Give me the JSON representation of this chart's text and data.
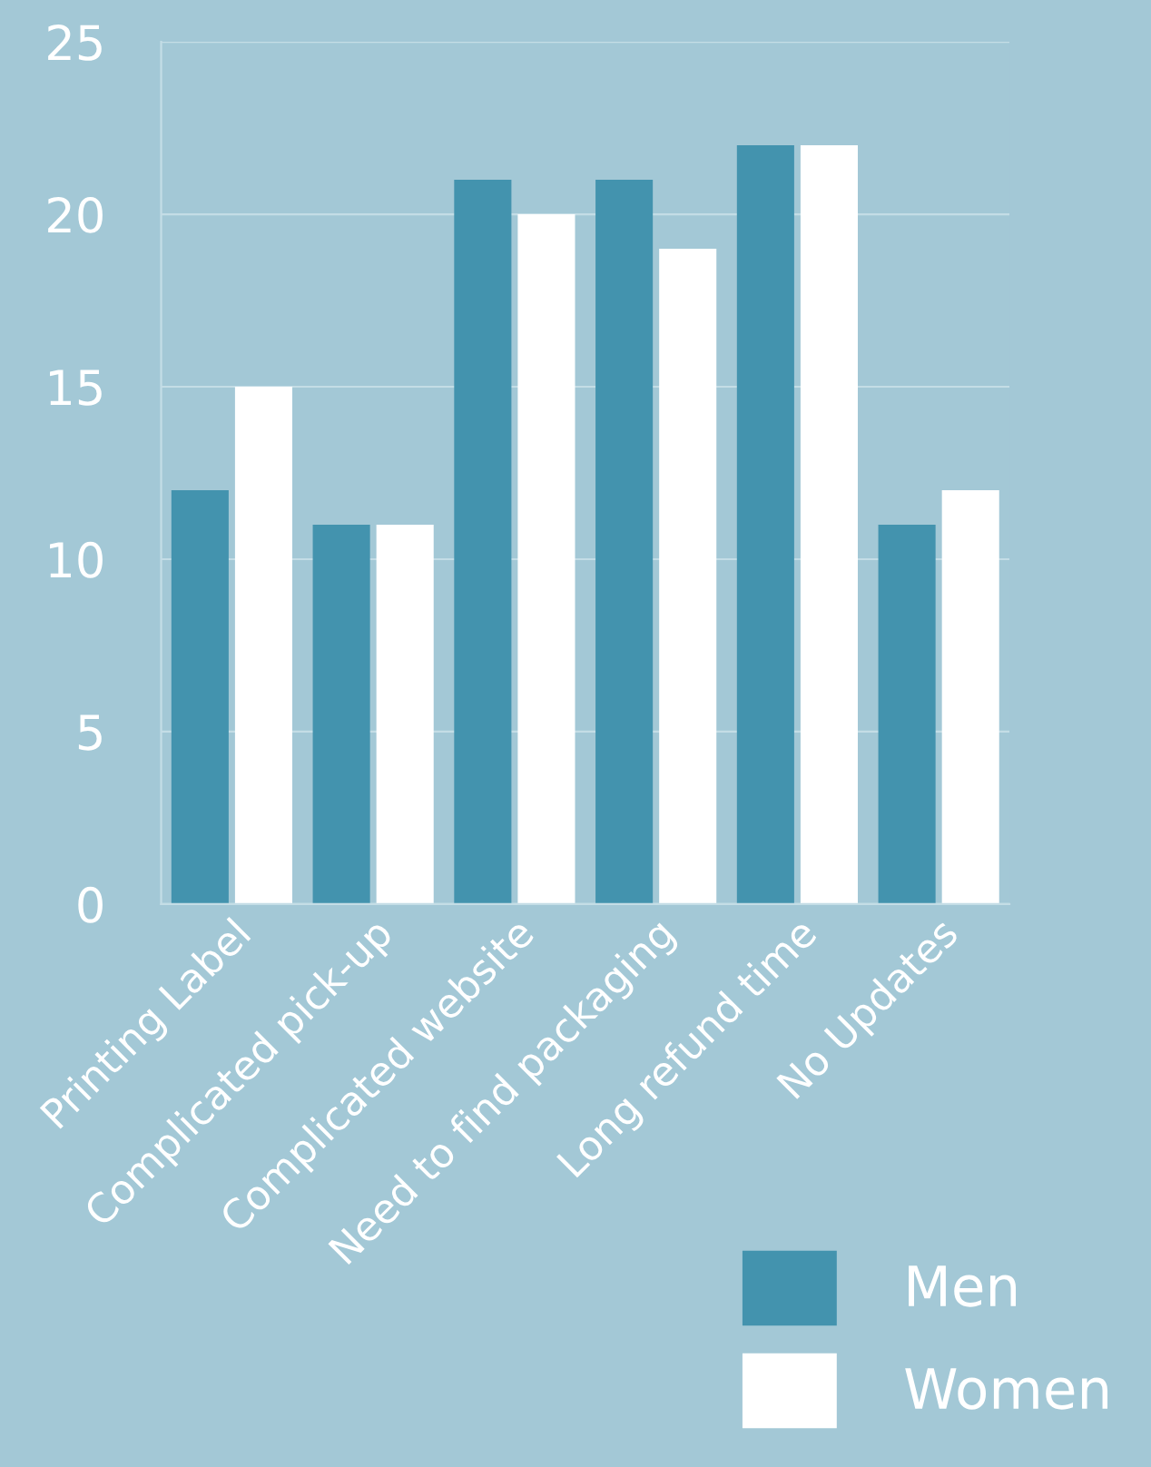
{
  "chart_data": {
    "type": "bar",
    "categories": [
      "Printing Label",
      "Complicated pick-up",
      "Complicated website",
      "Need to find packaging",
      "Long refund time",
      "No Updates"
    ],
    "series": [
      {
        "name": "Men",
        "color": "#4393ae",
        "values": [
          12,
          11,
          21,
          21,
          22,
          11
        ]
      },
      {
        "name": "Women",
        "color": "#ffffff",
        "values": [
          15,
          11,
          20,
          19,
          22,
          12
        ]
      }
    ],
    "ylim": [
      0,
      25
    ],
    "yticks": [
      0,
      5,
      10,
      15,
      20,
      25
    ],
    "grid": "y",
    "legend": "bottom right"
  }
}
